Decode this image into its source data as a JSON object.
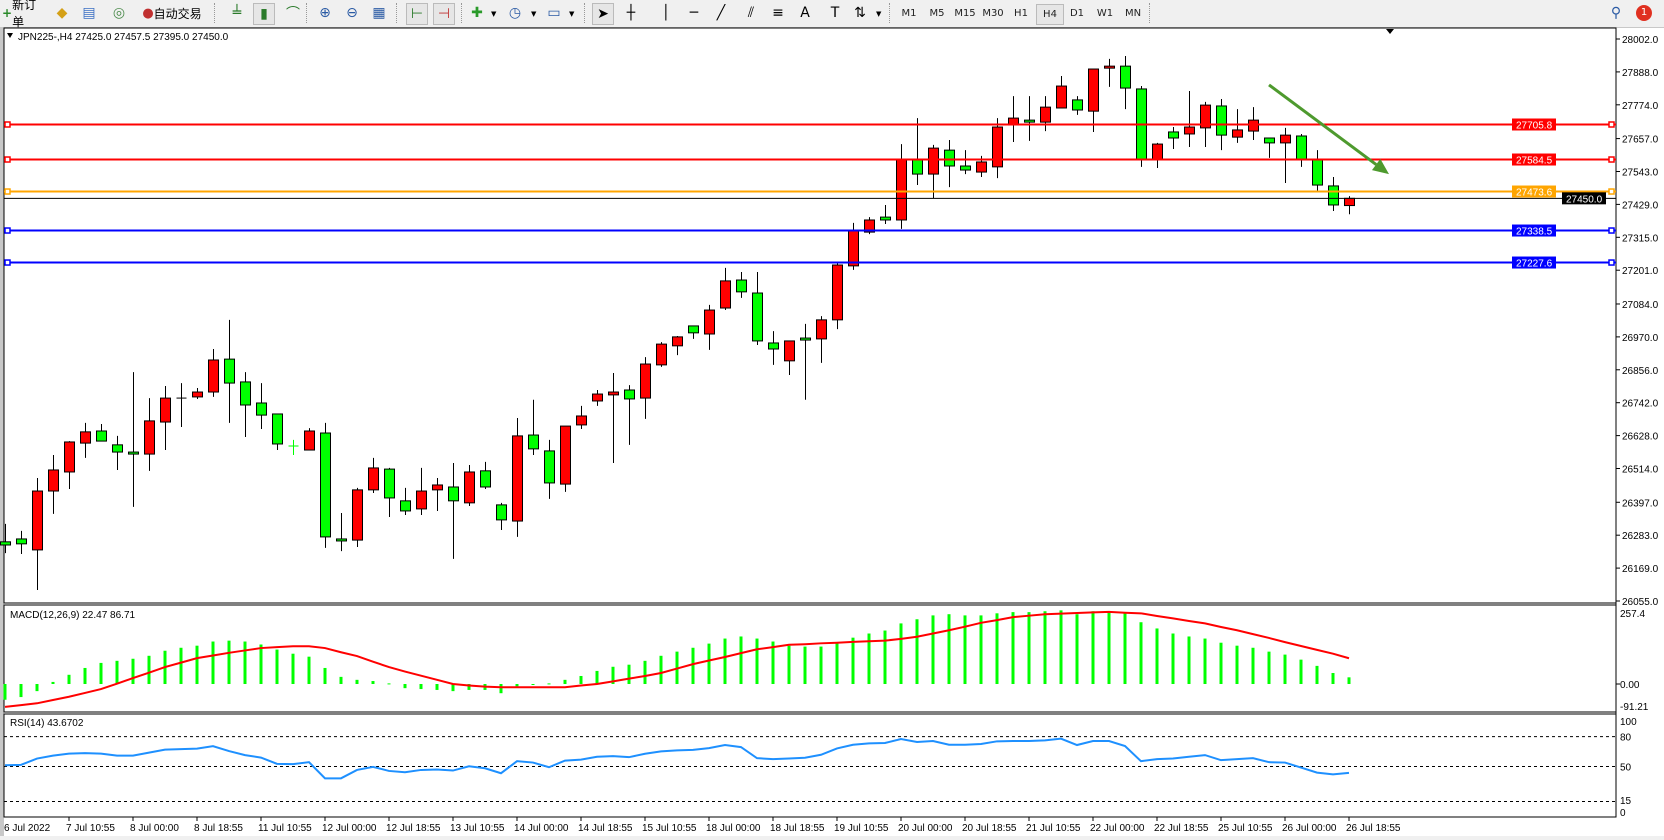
{
  "toolbar": {
    "new_order_label": "新订单",
    "auto_trading_label": "自动交易",
    "timeframes": [
      "M1",
      "M5",
      "M15",
      "M30",
      "H1",
      "H4",
      "D1",
      "W1",
      "MN"
    ],
    "active_timeframe": "H4",
    "notification_count": "1"
  },
  "chart": {
    "title": "JPN225-,H4  27425.0 27457.5 27395.0 27450.0",
    "current_price_label": "27450.0",
    "current_price": 27450.0,
    "price_axis_labels": [
      "28002.0",
      "27888.0",
      "27774.0",
      "27657.0",
      "27543.0",
      "27429.0",
      "27315.0",
      "27201.0",
      "27084.0",
      "26970.0",
      "26856.0",
      "26742.0",
      "26628.0",
      "26514.0",
      "26397.0",
      "26283.0",
      "26169.0",
      "26055.0"
    ],
    "price_range": [
      26055.0,
      28002.0
    ],
    "bullish_color": "#ff0000",
    "bearish_color": "#00ff00",
    "horizontal_lines": [
      {
        "price": 27705.8,
        "label": "27705.8",
        "color": "#ff0000"
      },
      {
        "price": 27584.5,
        "label": "27584.5",
        "color": "#ff0000"
      },
      {
        "price": 27473.6,
        "label": "27473.6",
        "color": "#ffa500"
      },
      {
        "price": 27338.5,
        "label": "27338.5",
        "color": "#0000ff"
      },
      {
        "price": 27227.6,
        "label": "27227.6",
        "color": "#0000ff"
      }
    ],
    "trend_arrow": {
      "color": "#4e9a2e",
      "from_bar": 79,
      "from_price": 27843,
      "to_bar": 86.5,
      "to_price": 27534
    },
    "candles_ohlc": [
      [
        26260,
        26322,
        26221,
        26249
      ],
      [
        26270,
        26298,
        26218,
        26253
      ],
      [
        26232,
        26481,
        26093,
        26436
      ],
      [
        26436,
        26561,
        26357,
        26509
      ],
      [
        26502,
        26609,
        26443,
        26606
      ],
      [
        26602,
        26672,
        26551,
        26641
      ],
      [
        26644,
        26668,
        26609,
        26609
      ],
      [
        26596,
        26627,
        26509,
        26571
      ],
      [
        26571,
        26848,
        26381,
        26564
      ],
      [
        26564,
        26758,
        26506,
        26679
      ],
      [
        26675,
        26800,
        26578,
        26758
      ],
      [
        26758,
        26810,
        26658,
        26758
      ],
      [
        26762,
        26793,
        26755,
        26779
      ],
      [
        26779,
        26928,
        26762,
        26890
      ],
      [
        26893,
        27029,
        26672,
        26810
      ],
      [
        26814,
        26848,
        26623,
        26734
      ],
      [
        26741,
        26810,
        26651,
        26699
      ],
      [
        26703,
        26703,
        26578,
        26599
      ],
      [
        26592,
        26613,
        26561,
        26592
      ],
      [
        26578,
        26654,
        26578,
        26644
      ],
      [
        26637,
        26672,
        26239,
        26277
      ],
      [
        26270,
        26360,
        26228,
        26263
      ],
      [
        26266,
        26447,
        26242,
        26440
      ],
      [
        26440,
        26551,
        26429,
        26516
      ],
      [
        26512,
        26516,
        26346,
        26412
      ],
      [
        26402,
        26447,
        26353,
        26367
      ],
      [
        26374,
        26516,
        26353,
        26436
      ],
      [
        26440,
        26481,
        26367,
        26457
      ],
      [
        26450,
        26533,
        26201,
        26402
      ],
      [
        26395,
        26526,
        26384,
        26502
      ],
      [
        26506,
        26537,
        26443,
        26450
      ],
      [
        26388,
        26395,
        26301,
        26336
      ],
      [
        26332,
        26689,
        26277,
        26627
      ],
      [
        26630,
        26752,
        26561,
        26582
      ],
      [
        26575,
        26613,
        26409,
        26464
      ],
      [
        26460,
        26661,
        26433,
        26661
      ],
      [
        26665,
        26731,
        26651,
        26696
      ],
      [
        26748,
        26786,
        26731,
        26772
      ],
      [
        26769,
        26845,
        26533,
        26779
      ],
      [
        26786,
        26803,
        26596,
        26755
      ],
      [
        26758,
        26900,
        26686,
        26876
      ],
      [
        26873,
        26952,
        26866,
        26945
      ],
      [
        26939,
        26973,
        26907,
        26970
      ],
      [
        27008,
        27008,
        26963,
        26984
      ],
      [
        26980,
        27081,
        26925,
        27063
      ],
      [
        27070,
        27209,
        27063,
        27164
      ],
      [
        27167,
        27195,
        27105,
        27126
      ],
      [
        27122,
        27195,
        26942,
        26956
      ],
      [
        26949,
        26990,
        26873,
        26928
      ],
      [
        26887,
        26956,
        26838,
        26956
      ],
      [
        26966,
        27015,
        26752,
        26959
      ],
      [
        26963,
        27042,
        26880,
        27029
      ],
      [
        27029,
        27226,
        26997,
        27219
      ],
      [
        27216,
        27365,
        27202,
        27340
      ],
      [
        27333,
        27385,
        27326,
        27375
      ],
      [
        27385,
        27427,
        27361,
        27375
      ],
      [
        27375,
        27638,
        27344,
        27586
      ],
      [
        27583,
        27728,
        27496,
        27534
      ],
      [
        27534,
        27635,
        27451,
        27624
      ],
      [
        27617,
        27652,
        27489,
        27562
      ],
      [
        27562,
        27617,
        27534,
        27548
      ],
      [
        27541,
        27597,
        27524,
        27576
      ],
      [
        27559,
        27728,
        27520,
        27697
      ],
      [
        27704,
        27804,
        27645,
        27728
      ],
      [
        27721,
        27804,
        27649,
        27714
      ],
      [
        27714,
        27804,
        27683,
        27766
      ],
      [
        27763,
        27874,
        27763,
        27839
      ],
      [
        27791,
        27804,
        27739,
        27756
      ],
      [
        27752,
        27898,
        27680,
        27898
      ],
      [
        27901,
        27933,
        27836,
        27908
      ],
      [
        27908,
        27943,
        27759,
        27832
      ],
      [
        27829,
        27839,
        27559,
        27586
      ],
      [
        27586,
        27642,
        27555,
        27638
      ],
      [
        27680,
        27697,
        27621,
        27659
      ],
      [
        27673,
        27822,
        27628,
        27697
      ],
      [
        27694,
        27784,
        27628,
        27773
      ],
      [
        27770,
        27794,
        27617,
        27669
      ],
      [
        27662,
        27759,
        27642,
        27687
      ],
      [
        27683,
        27766,
        27652,
        27721
      ],
      [
        27659,
        27659,
        27590,
        27642
      ],
      [
        27642,
        27694,
        27503,
        27669
      ],
      [
        27666,
        27673,
        27559,
        27586
      ],
      [
        27586,
        27617,
        27472,
        27496
      ],
      [
        27493,
        27524,
        27406,
        27427
      ],
      [
        27425,
        27457.5,
        27395,
        27450
      ]
    ],
    "time_labels": [
      "6 Jul 2022",
      "7 Jul 10:55",
      "8 Jul 00:00",
      "8 Jul 18:55",
      "11 Jul 10:55",
      "12 Jul 00:00",
      "12 Jul 18:55",
      "13 Jul 10:55",
      "14 Jul 00:00",
      "14 Jul 18:55",
      "15 Jul 10:55",
      "18 Jul 00:00",
      "18 Jul 18:55",
      "19 Jul 10:55",
      "20 Jul 00:00",
      "20 Jul 18:55",
      "21 Jul 10:55",
      "22 Jul 00:00",
      "22 Jul 18:55",
      "25 Jul 10:55",
      "26 Jul 00:00",
      "26 Jul 18:55"
    ]
  },
  "macd": {
    "label": "MACD(12,26,9) 22.47 86.71",
    "axis_labels": [
      "257.4",
      "0.00",
      "-91.21"
    ],
    "range": [
      -91.21,
      257.4
    ],
    "histogram_color": "#00ff00",
    "signal_color": "#ff0000",
    "histogram": [
      -53,
      -44,
      -24,
      7,
      31,
      54,
      71,
      78,
      85,
      95,
      112,
      122,
      129,
      143,
      146,
      143,
      133,
      116,
      102,
      92,
      54,
      24,
      14,
      10,
      2,
      -14,
      -17,
      -20,
      -24,
      -20,
      -20,
      -31,
      -8,
      -2,
      2,
      14,
      27,
      44,
      58,
      65,
      78,
      95,
      109,
      122,
      136,
      153,
      160,
      153,
      143,
      129,
      126,
      126,
      139,
      156,
      170,
      180,
      204,
      218,
      231,
      235,
      231,
      231,
      238,
      242,
      242,
      245,
      248,
      235,
      245,
      242,
      238,
      208,
      187,
      170,
      160,
      153,
      139,
      129,
      122,
      109,
      99,
      82,
      61,
      37,
      22.47
    ],
    "signal": [
      -77,
      -71,
      -65,
      -54,
      -43,
      -30,
      -17,
      1,
      20,
      38,
      57,
      72,
      87,
      96,
      105,
      113,
      121,
      124,
      127,
      127,
      121,
      107,
      94,
      75,
      57,
      42,
      28,
      14,
      0,
      -5,
      -9,
      -11,
      -11,
      -11,
      -11,
      -11,
      -5,
      0,
      9,
      18,
      27,
      37,
      52,
      67,
      79,
      91,
      104,
      117,
      124,
      132,
      134,
      137,
      139,
      142,
      144,
      146,
      152,
      159,
      170,
      181,
      193,
      206,
      215,
      225,
      230,
      235,
      237,
      239,
      241,
      243,
      240,
      238,
      229,
      221,
      212,
      204,
      192,
      181,
      168,
      155,
      141,
      128,
      115,
      102,
      86.71
    ]
  },
  "rsi": {
    "label": "RSI(14) 43.6702",
    "axis_labels": [
      "100",
      "80",
      "50",
      "15",
      "0"
    ],
    "levels": [
      80,
      50,
      15
    ],
    "line_color": "#1e90ff",
    "values": [
      51.3,
      51.7,
      58,
      61,
      63,
      63.5,
      63,
      61,
      61,
      64,
      67,
      67.5,
      68,
      70.5,
      65.5,
      61.5,
      59,
      52.7,
      52.4,
      54.4,
      38.2,
      38.2,
      46.6,
      49.7,
      45.6,
      44.3,
      46.6,
      47,
      46,
      50.3,
      48.3,
      43.3,
      55.4,
      54,
      49.3,
      56,
      57,
      59.8,
      60.4,
      59.4,
      62.8,
      65.2,
      66.2,
      66.7,
      68.5,
      71.6,
      69.5,
      58.4,
      57.4,
      58.1,
      58.8,
      61.8,
      68.2,
      71.9,
      73.3,
      73.6,
      77.6,
      74.6,
      75.6,
      71.9,
      71.9,
      72.6,
      75.3,
      75.6,
      75.6,
      76.3,
      78,
      71.6,
      75.6,
      75.6,
      70.6,
      55.4,
      57.4,
      58.1,
      59.8,
      61.5,
      56.4,
      57.4,
      58.4,
      54.4,
      54,
      49,
      43.9,
      42.2,
      43.67
    ]
  }
}
